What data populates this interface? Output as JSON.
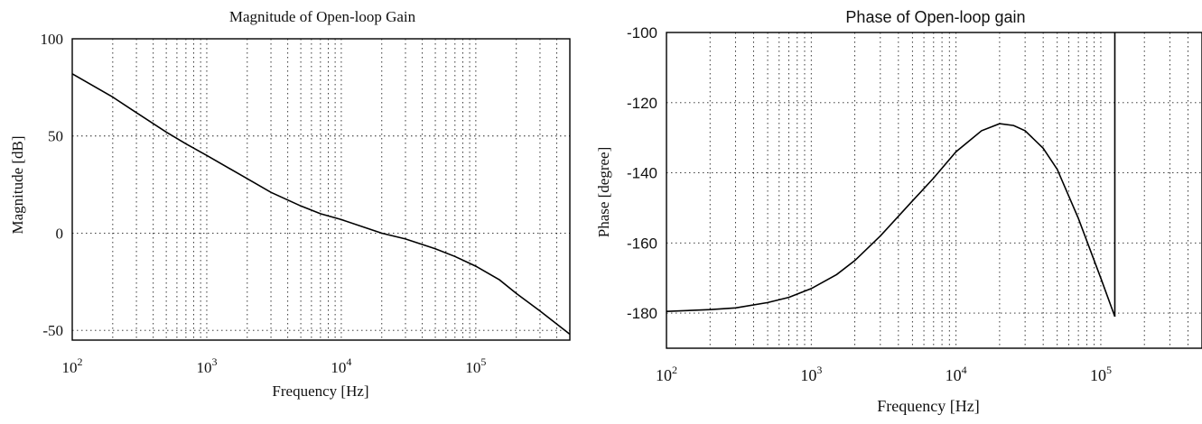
{
  "chart_data": [
    {
      "type": "line",
      "title": "Magnitude of Open-loop Gain",
      "xlabel": "Frequency [Hz]",
      "ylabel": "Magnitude [dB]",
      "xscale": "log",
      "xlim": [
        100,
        500000
      ],
      "ylim": [
        -55,
        100
      ],
      "x_ticks": [
        100,
        1000,
        10000,
        100000
      ],
      "x_tick_labels": [
        {
          "base": "10",
          "exp": "2"
        },
        {
          "base": "10",
          "exp": "3"
        },
        {
          "base": "10",
          "exp": "4"
        },
        {
          "base": "10",
          "exp": "5"
        }
      ],
      "y_ticks": [
        100,
        50,
        0,
        -50
      ],
      "y_tick_labels": [
        "100",
        "50",
        "0",
        "-50"
      ],
      "grid": true,
      "series": [
        {
          "x": [
            100,
            200,
            300,
            500,
            700,
            1000,
            2000,
            3000,
            5000,
            7000,
            10000,
            20000,
            30000,
            50000,
            70000,
            100000,
            150000,
            200000,
            300000,
            500000
          ],
          "y": [
            82,
            70,
            62,
            52,
            46,
            40,
            28,
            21,
            14,
            10,
            7,
            0,
            -3,
            -8,
            -12,
            -17,
            -24,
            -31,
            -40,
            -52
          ]
        }
      ]
    },
    {
      "type": "line",
      "title": "Phase of Open-loop gain",
      "xlabel": "Frequency [Hz]",
      "ylabel": "Phase [degree]",
      "xscale": "log",
      "xlim": [
        100,
        500000
      ],
      "ylim": [
        -190,
        -100
      ],
      "x_ticks": [
        100,
        1000,
        10000,
        100000
      ],
      "x_tick_labels": [
        {
          "base": "10",
          "exp": "2"
        },
        {
          "base": "10",
          "exp": "3"
        },
        {
          "base": "10",
          "exp": "4"
        },
        {
          "base": "10",
          "exp": "5"
        }
      ],
      "y_ticks": [
        -100,
        -120,
        -140,
        -160,
        -180
      ],
      "y_tick_labels": [
        "-100",
        "-120",
        "-140",
        "-160",
        "-180"
      ],
      "grid": true,
      "series": [
        {
          "x": [
            100,
            200,
            300,
            500,
            700,
            1000,
            1500,
            2000,
            3000,
            5000,
            7000,
            10000,
            15000,
            20000,
            25000,
            30000,
            40000,
            50000,
            70000,
            100000,
            125000
          ],
          "y": [
            -179.5,
            -179,
            -178.5,
            -177,
            -175.5,
            -173,
            -169,
            -165,
            -158,
            -148,
            -141.5,
            -134,
            -128,
            -126,
            -126.5,
            -128,
            -133,
            -139,
            -153,
            -170,
            -181
          ]
        }
      ],
      "vertical_line_x": 125000
    }
  ]
}
